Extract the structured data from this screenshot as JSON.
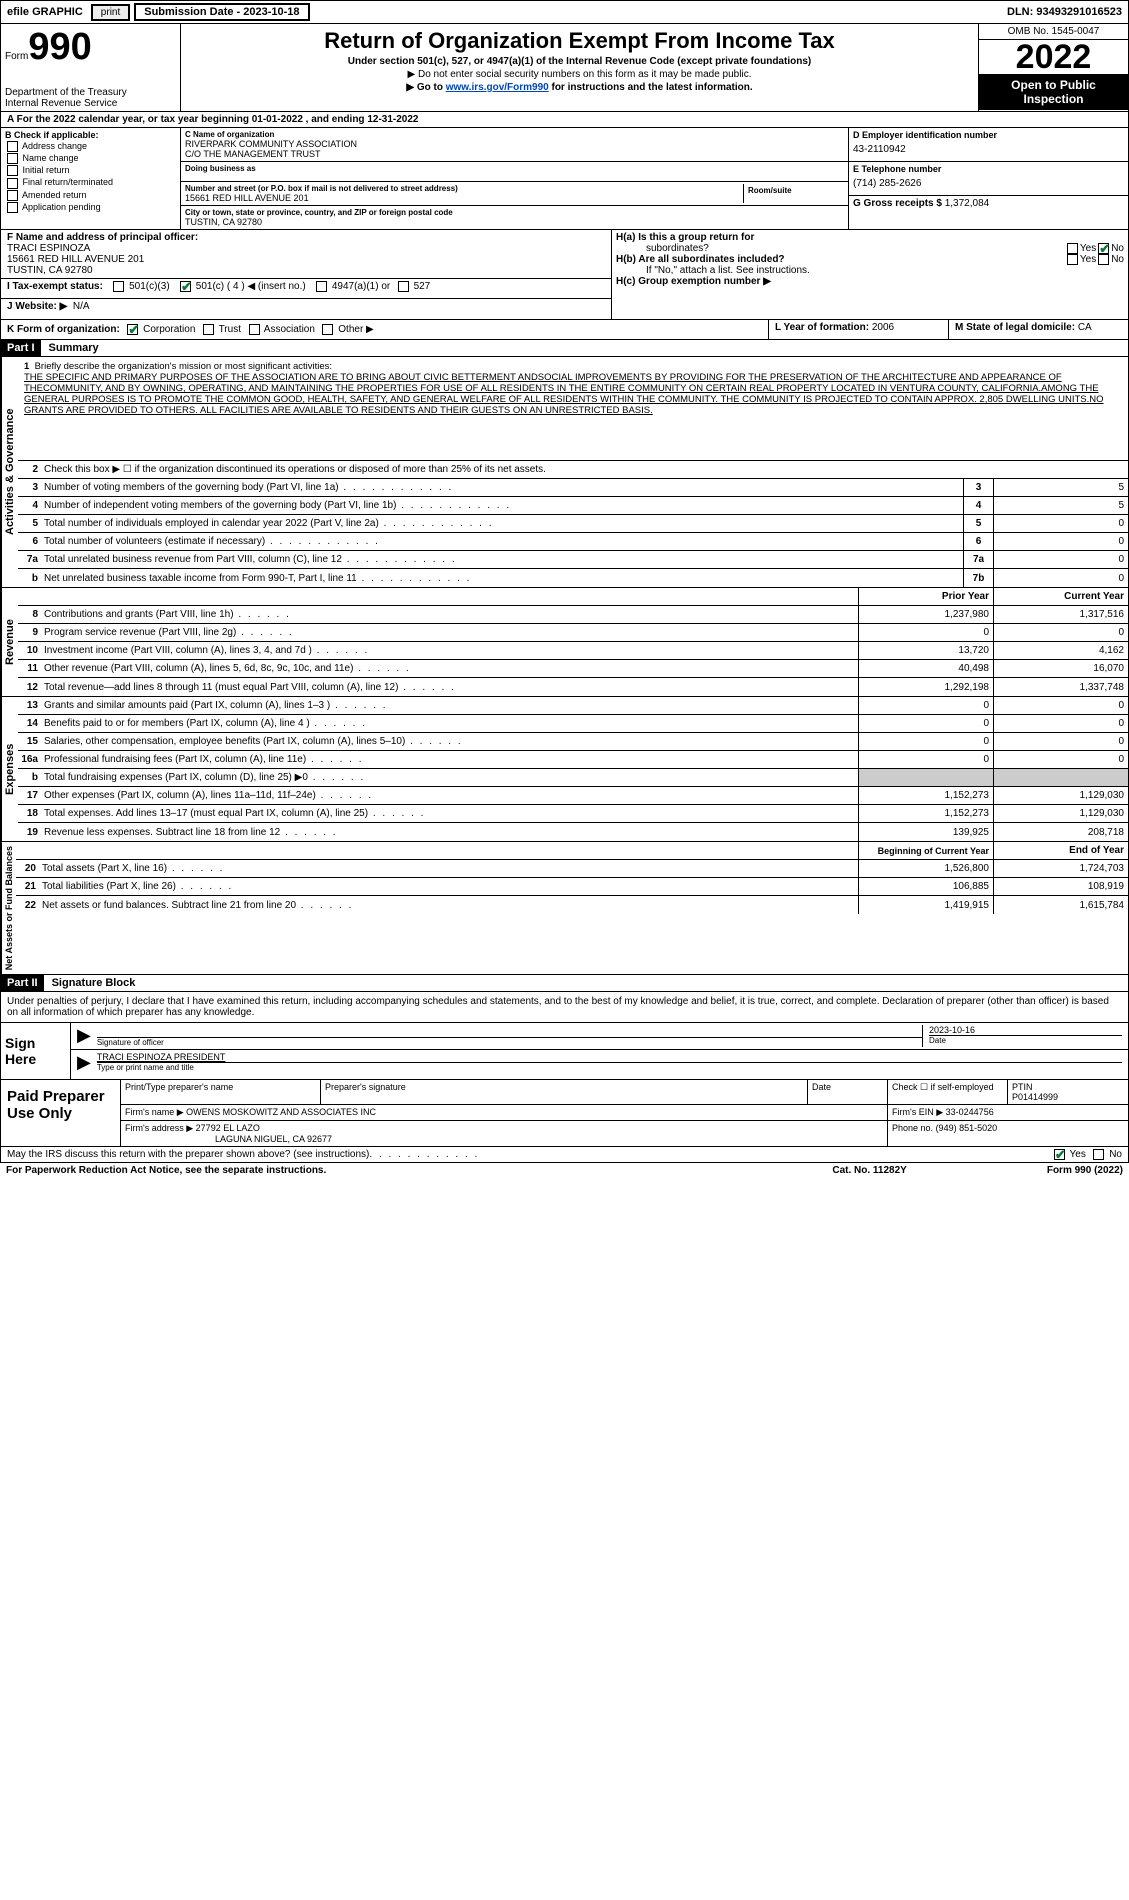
{
  "top": {
    "efile": "efile GRAPHIC",
    "print": "print",
    "sub_date_label": "Submission Date - 2023-10-18",
    "dln": "DLN: 93493291016523"
  },
  "header": {
    "form_prefix": "Form",
    "form_num": "990",
    "title": "Return of Organization Exempt From Income Tax",
    "sub1": "Under section 501(c), 527, or 4947(a)(1) of the Internal Revenue Code (except private foundations)",
    "sub2": "▶ Do not enter social security numbers on this form as it may be made public.",
    "sub3_pre": "▶ Go to ",
    "sub3_link": "www.irs.gov/Form990",
    "sub3_post": " for instructions and the latest information.",
    "dept": "Department of the Treasury\nInternal Revenue Service",
    "omb": "OMB No. 1545-0047",
    "year": "2022",
    "inspection": "Open to Public Inspection"
  },
  "rowA": "A For the 2022 calendar year, or tax year beginning 01-01-2022   , and ending 12-31-2022",
  "colB": {
    "hdr": "B Check if applicable:",
    "opts": [
      "Address change",
      "Name change",
      "Initial return",
      "Final return/terminated",
      "Amended return",
      "Application pending"
    ]
  },
  "colC": {
    "name_lbl": "C Name of organization",
    "name1": "RIVERPARK COMMUNITY ASSOCIATION",
    "name2": "C/O THE MANAGEMENT TRUST",
    "dba_lbl": "Doing business as",
    "dba": "",
    "street_lbl": "Number and street (or P.O. box if mail is not delivered to street address)",
    "street": "15661 RED HILL AVENUE 201",
    "room_lbl": "Room/suite",
    "city_lbl": "City or town, state or province, country, and ZIP or foreign postal code",
    "city": "TUSTIN, CA  92780"
  },
  "colD": {
    "lbl": "D Employer identification number",
    "val": "43-2110942"
  },
  "colE": {
    "lbl": "E Telephone number",
    "val": "(714) 285-2626"
  },
  "colG": {
    "lbl": "G Gross receipts $",
    "val": "1,372,084"
  },
  "rowF": {
    "lbl": "F Name and address of principal officer:",
    "name": "TRACI ESPINOZA",
    "addr1": "15661 RED HILL AVENUE 201",
    "addr2": "TUSTIN, CA  92780"
  },
  "rowH": {
    "a": "H(a)  Is this a group return for",
    "a2": "subordinates?",
    "b": "H(b)  Are all subordinates included?",
    "b2": "If \"No,\" attach a list. See instructions.",
    "c": "H(c)  Group exemption number ▶"
  },
  "rowI": {
    "lbl": "I   Tax-exempt status:",
    "s1": "501(c)(3)",
    "s2": "501(c) ( 4 ) ◀ (insert no.)",
    "s3": "4947(a)(1) or",
    "s4": "527"
  },
  "rowJ": {
    "lbl": "J   Website: ▶",
    "val": "N/A"
  },
  "rowK": {
    "lbl": "K Form of organization:",
    "opts": [
      "Corporation",
      "Trust",
      "Association",
      "Other ▶"
    ],
    "l_lbl": "L Year of formation:",
    "l_val": "2006",
    "m_lbl": "M State of legal domicile:",
    "m_val": "CA"
  },
  "part1": {
    "hdr": "Part I",
    "title": "Summary"
  },
  "mission": {
    "num": "1",
    "lbl": "Briefly describe the organization's mission or most significant activities:",
    "text": "THE SPECIFIC AND PRIMARY PURPOSES OF THE ASSOCIATION ARE TO BRING ABOUT CIVIC BETTERMENT ANDSOCIAL IMPROVEMENTS BY PROVIDING FOR THE PRESERVATION OF THE ARCHITECTURE AND APPEARANCE OF THECOMMUNITY, AND BY OWNING, OPERATING, AND MAINTAINING THE PROPERTIES FOR USE OF ALL RESIDENTS IN THE ENTIRE COMMUNITY ON CERTAIN REAL PROPERTY LOCATED IN VENTURA COUNTY, CALIFORNIA.AMONG THE GENERAL PURPOSES IS TO PROMOTE THE COMMON GOOD, HEALTH, SAFETY, AND GENERAL WELFARE OF ALL RESIDENTS WITHIN THE COMMUNITY. THE COMMUNITY IS PROJECTED TO CONTAIN APPROX. 2,805 DWELLING UNITS.NO GRANTS ARE PROVIDED TO OTHERS. ALL FACILITIES ARE AVAILABLE TO RESIDENTS AND THEIR GUESTS ON AN UNRESTRICTED BASIS."
  },
  "gov_lines": [
    {
      "n": "2",
      "d": "Check this box ▶ ☐ if the organization discontinued its operations or disposed of more than 25% of its net assets."
    },
    {
      "n": "3",
      "d": "Number of voting members of the governing body (Part VI, line 1a)",
      "box": "3",
      "v": "5"
    },
    {
      "n": "4",
      "d": "Number of independent voting members of the governing body (Part VI, line 1b)",
      "box": "4",
      "v": "5"
    },
    {
      "n": "5",
      "d": "Total number of individuals employed in calendar year 2022 (Part V, line 2a)",
      "box": "5",
      "v": "0"
    },
    {
      "n": "6",
      "d": "Total number of volunteers (estimate if necessary)",
      "box": "6",
      "v": "0"
    },
    {
      "n": "7a",
      "d": "Total unrelated business revenue from Part VIII, column (C), line 12",
      "box": "7a",
      "v": "0"
    },
    {
      "n": "b",
      "d": "Net unrelated business taxable income from Form 990-T, Part I, line 11",
      "box": "7b",
      "v": "0"
    }
  ],
  "rev_hdr": {
    "prior": "Prior Year",
    "current": "Current Year"
  },
  "rev_lines": [
    {
      "n": "8",
      "d": "Contributions and grants (Part VIII, line 1h)",
      "p": "1,237,980",
      "c": "1,317,516"
    },
    {
      "n": "9",
      "d": "Program service revenue (Part VIII, line 2g)",
      "p": "0",
      "c": "0"
    },
    {
      "n": "10",
      "d": "Investment income (Part VIII, column (A), lines 3, 4, and 7d )",
      "p": "13,720",
      "c": "4,162"
    },
    {
      "n": "11",
      "d": "Other revenue (Part VIII, column (A), lines 5, 6d, 8c, 9c, 10c, and 11e)",
      "p": "40,498",
      "c": "16,070"
    },
    {
      "n": "12",
      "d": "Total revenue—add lines 8 through 11 (must equal Part VIII, column (A), line 12)",
      "p": "1,292,198",
      "c": "1,337,748"
    }
  ],
  "exp_lines": [
    {
      "n": "13",
      "d": "Grants and similar amounts paid (Part IX, column (A), lines 1–3 )",
      "p": "0",
      "c": "0"
    },
    {
      "n": "14",
      "d": "Benefits paid to or for members (Part IX, column (A), line 4 )",
      "p": "0",
      "c": "0"
    },
    {
      "n": "15",
      "d": "Salaries, other compensation, employee benefits (Part IX, column (A), lines 5–10)",
      "p": "0",
      "c": "0"
    },
    {
      "n": "16a",
      "d": "Professional fundraising fees (Part IX, column (A), line 11e)",
      "p": "0",
      "c": "0"
    },
    {
      "n": "b",
      "d": "Total fundraising expenses (Part IX, column (D), line 25) ▶0",
      "p": "",
      "c": "",
      "shaded": true
    },
    {
      "n": "17",
      "d": "Other expenses (Part IX, column (A), lines 11a–11d, 11f–24e)",
      "p": "1,152,273",
      "c": "1,129,030"
    },
    {
      "n": "18",
      "d": "Total expenses. Add lines 13–17 (must equal Part IX, column (A), line 25)",
      "p": "1,152,273",
      "c": "1,129,030"
    },
    {
      "n": "19",
      "d": "Revenue less expenses. Subtract line 18 from line 12",
      "p": "139,925",
      "c": "208,718"
    }
  ],
  "net_hdr": {
    "begin": "Beginning of Current Year",
    "end": "End of Year"
  },
  "net_lines": [
    {
      "n": "20",
      "d": "Total assets (Part X, line 16)",
      "p": "1,526,800",
      "c": "1,724,703"
    },
    {
      "n": "21",
      "d": "Total liabilities (Part X, line 26)",
      "p": "106,885",
      "c": "108,919"
    },
    {
      "n": "22",
      "d": "Net assets or fund balances. Subtract line 21 from line 20",
      "p": "1,419,915",
      "c": "1,615,784"
    }
  ],
  "side_labels": {
    "gov": "Activities & Governance",
    "rev": "Revenue",
    "exp": "Expenses",
    "net": "Net Assets or Fund Balances"
  },
  "part2": {
    "hdr": "Part II",
    "title": "Signature Block"
  },
  "sig_intro": "Under penalties of perjury, I declare that I have examined this return, including accompanying schedules and statements, and to the best of my knowledge and belief, it is true, correct, and complete. Declaration of preparer (other than officer) is based on all information of which preparer has any knowledge.",
  "sign": {
    "left": "Sign Here",
    "sig_lbl": "Signature of officer",
    "date_lbl": "Date",
    "date_val": "2023-10-16",
    "name": "TRACI ESPINOZA  PRESIDENT",
    "name_lbl": "Type or print name and title"
  },
  "paid": {
    "left": "Paid Preparer Use Only",
    "r1": {
      "c1": "Print/Type preparer's name",
      "c2": "Preparer's signature",
      "c3": "Date",
      "c4": "Check ☐ if self-employed",
      "c5": "PTIN",
      "c5v": "P01414999"
    },
    "r2": {
      "lbl": "Firm's name    ▶",
      "val": "OWENS MOSKOWITZ AND ASSOCIATES INC",
      "ein_lbl": "Firm's EIN ▶",
      "ein": "33-0244756"
    },
    "r3": {
      "lbl": "Firm's address ▶",
      "val1": "27792 EL LAZO",
      "val2": "LAGUNA NIGUEL, CA  92677",
      "ph_lbl": "Phone no.",
      "ph": "(949) 851-5020"
    }
  },
  "discuss": "May the IRS discuss this return with the preparer shown above? (see instructions)",
  "footer": {
    "left": "For Paperwork Reduction Act Notice, see the separate instructions.",
    "mid": "Cat. No. 11282Y",
    "right": "Form 990 (2022)"
  },
  "yes": "Yes",
  "no": "No"
}
